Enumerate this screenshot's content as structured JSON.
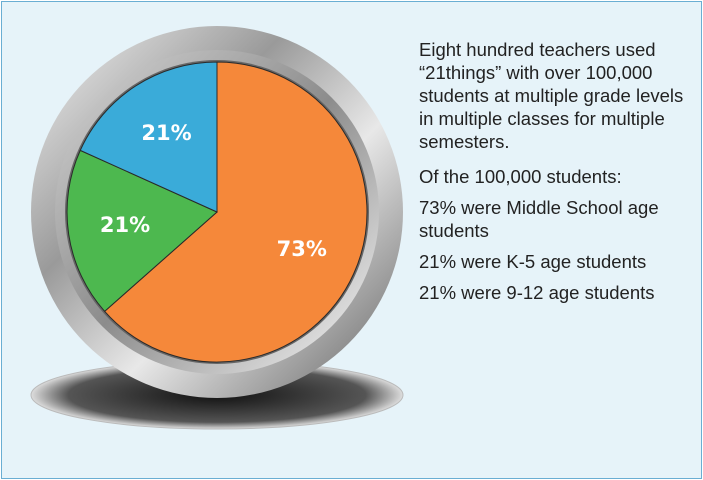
{
  "chart_data": {
    "type": "pie",
    "values": [
      73,
      21,
      21
    ],
    "value_labels": [
      "73%",
      "21%",
      "21%"
    ],
    "colors": [
      "#f5883a",
      "#4db84f",
      "#3aabd9"
    ]
  },
  "text": {
    "intro": "Eight hundred teachers used “21things” with over 100,000 students at multiple grade levels in multiple classes for multiple semesters.",
    "lead": "Of the 100,000 students:",
    "items": [
      "73% were Middle School age students",
      "21% were K-5 age students",
      "21% were 9-12 age students"
    ]
  }
}
